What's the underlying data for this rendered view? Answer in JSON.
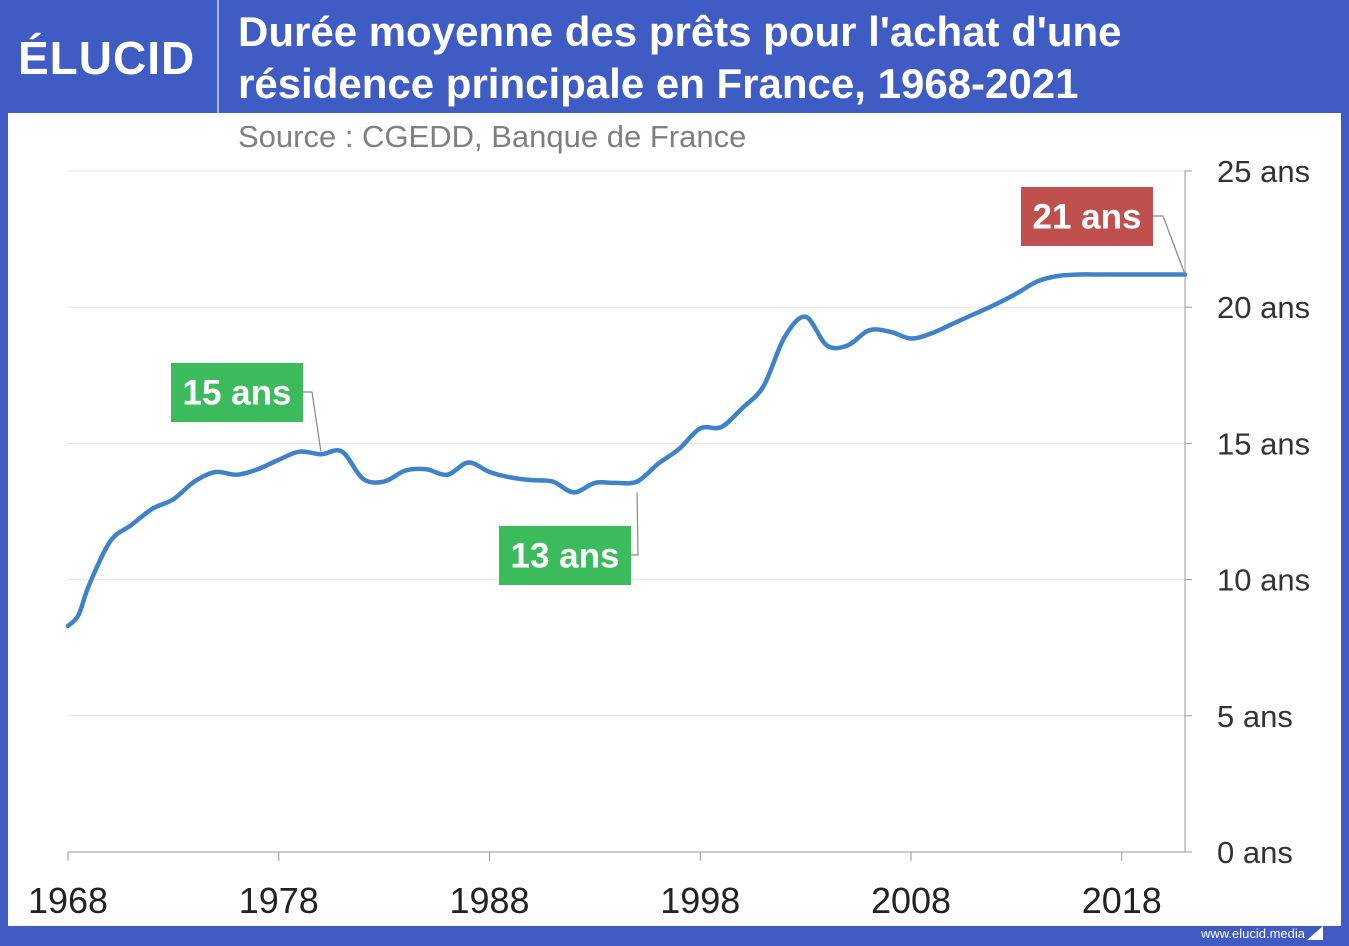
{
  "header": {
    "logo_text": "ÉLUCID",
    "title_line1": "Durée moyenne des prêts pour l'achat d'une",
    "title_line2": "résidence principale en France, 1968-2021",
    "source": "Source : CGEDD, Banque de France"
  },
  "footer": {
    "url": "www.elucid.media"
  },
  "colors": {
    "background": "#3f5bc4",
    "line": "#3f82c8",
    "grid": "#e3e3e3",
    "callout_green": "#3cbb5d",
    "callout_red": "#c0504d"
  },
  "chart_data": {
    "type": "line",
    "title": "Durée moyenne des prêts pour l'achat d'une résidence principale en France, 1968-2021",
    "xlabel": "",
    "ylabel": "",
    "x_ticks": [
      "1968",
      "1978",
      "1988",
      "1998",
      "2008",
      "2018"
    ],
    "y_ticks": [
      "0 ans",
      "5 ans",
      "10 ans",
      "15 ans",
      "20 ans",
      "25 ans"
    ],
    "xlim": [
      1968,
      2021
    ],
    "ylim": [
      0,
      25
    ],
    "grid": true,
    "series": [
      {
        "name": "",
        "x": [
          1968,
          1968.5,
          1969,
          1970,
          1971,
          1972,
          1973,
          1974,
          1975,
          1976,
          1977,
          1978,
          1979,
          1980,
          1981,
          1982,
          1983,
          1984,
          1985,
          1986,
          1987,
          1988,
          1989,
          1990,
          1991,
          1992,
          1993,
          1994,
          1995,
          1996,
          1997,
          1998,
          1999,
          2000,
          2001,
          2002,
          2003,
          2004,
          2005,
          2006,
          2007,
          2008,
          2009,
          2010,
          2011,
          2012,
          2013,
          2014,
          2015,
          2016,
          2017,
          2018,
          2019,
          2020,
          2021
        ],
        "y": [
          8.3,
          8.7,
          9.8,
          11.4,
          12.0,
          12.6,
          12.95,
          13.6,
          13.95,
          13.85,
          14.05,
          14.4,
          14.7,
          14.6,
          14.7,
          13.7,
          13.6,
          14.0,
          14.05,
          13.85,
          14.3,
          13.95,
          13.75,
          13.65,
          13.6,
          13.2,
          13.55,
          13.55,
          13.6,
          14.25,
          14.8,
          15.55,
          15.6,
          16.3,
          17.1,
          18.9,
          19.65,
          18.6,
          18.6,
          19.15,
          19.1,
          18.85,
          19.05,
          19.4,
          19.75,
          20.1,
          20.5,
          20.95,
          21.15,
          21.2,
          21.2,
          21.2,
          21.2,
          21.2,
          21.2
        ]
      }
    ],
    "annotations": [
      {
        "label": "15 ans",
        "x": 1980,
        "y": 14.7,
        "color": "green"
      },
      {
        "label": "13 ans",
        "x": 1995,
        "y": 13.2,
        "color": "green"
      },
      {
        "label": "21 ans",
        "x": 2021,
        "y": 21.2,
        "color": "red"
      }
    ]
  }
}
